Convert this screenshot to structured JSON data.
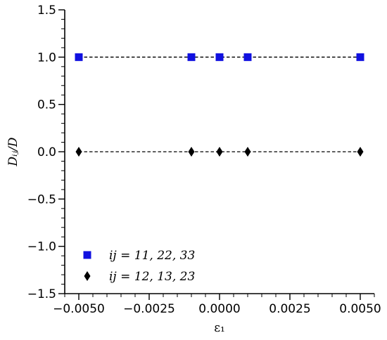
{
  "chart_data": {
    "type": "scatter",
    "title": "",
    "xlabel": "ε₁",
    "ylabel": "Dᵢⱼ/D",
    "xlim": [
      -0.0055,
      0.0055
    ],
    "ylim": [
      -1.5,
      1.5
    ],
    "x_ticks": [
      -0.005,
      -0.0025,
      0.0,
      0.0025,
      0.005
    ],
    "x_tick_labels": [
      "−0.0050",
      "−0.0025",
      "0.0000",
      "0.0025",
      "0.0050"
    ],
    "y_ticks": [
      1.5,
      1.0,
      0.5,
      0.0,
      -0.5,
      -1.0,
      -1.5
    ],
    "y_tick_labels": [
      "1.5",
      "1.0",
      "0.5",
      "0.0",
      "−0.5",
      "−1.0",
      "−1.5"
    ],
    "grid": false,
    "legend_position": "bottom-left",
    "series": [
      {
        "name": "ij = 11, 22, 33",
        "marker": "square",
        "color": "#1010e0",
        "x": [
          -0.005,
          -0.001,
          0.0,
          0.001,
          0.005
        ],
        "y": [
          1.0,
          1.0,
          1.0,
          1.0,
          1.0
        ]
      },
      {
        "name": "ij = 12, 13, 23",
        "marker": "diamond",
        "color": "#000000",
        "x": [
          -0.005,
          -0.001,
          0.0,
          0.001,
          0.005
        ],
        "y": [
          0.0,
          0.0,
          0.0,
          0.0,
          0.0
        ]
      }
    ],
    "reference_lines": [
      1.0,
      0.0
    ]
  }
}
